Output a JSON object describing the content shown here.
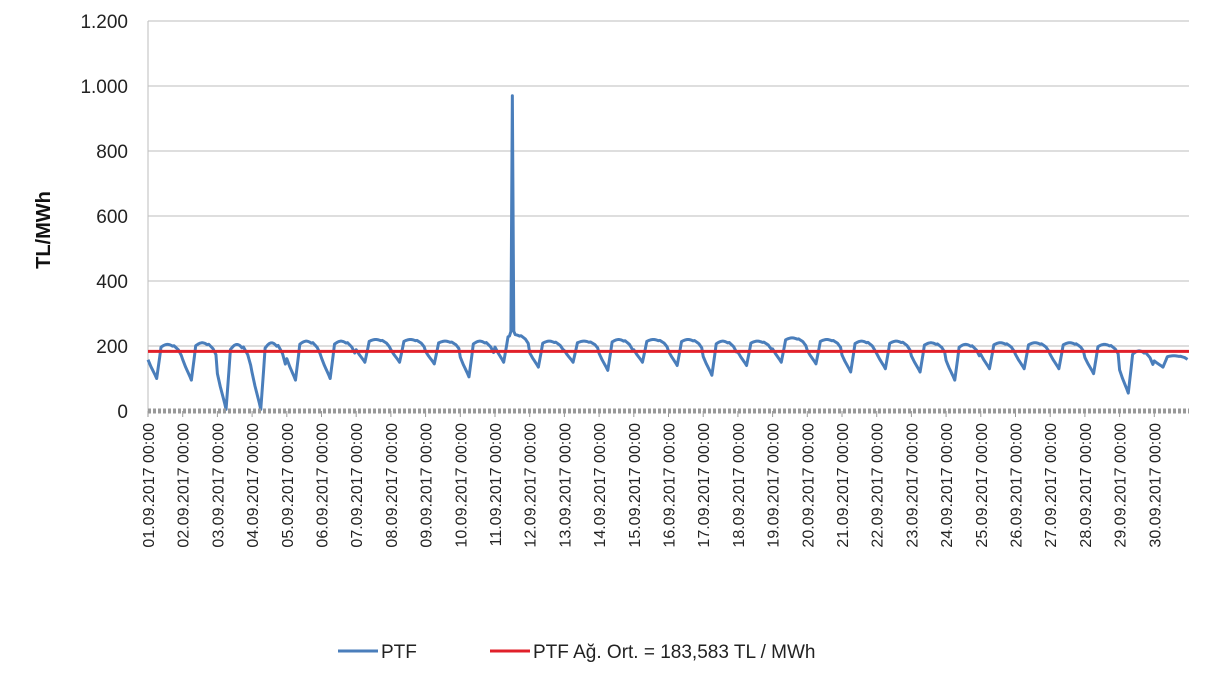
{
  "chart_data": {
    "type": "line",
    "ylabel": "TL/MWh",
    "xlabel": "",
    "ylim": [
      0,
      1200
    ],
    "yticks": [
      {
        "value": 0,
        "label": "0"
      },
      {
        "value": 200,
        "label": "200"
      },
      {
        "value": 400,
        "label": "400"
      },
      {
        "value": 600,
        "label": "600"
      },
      {
        "value": 800,
        "label": "800"
      },
      {
        "value": 1000,
        "label": "1.000"
      },
      {
        "value": 1200,
        "label": "1.200"
      }
    ],
    "xlim": [
      0,
      720
    ],
    "x_unit": "hours since 01.09.2017 00:00",
    "xticks": [
      "01.09.2017 00:00",
      "02.09.2017 00:00",
      "03.09.2017 00:00",
      "04.09.2017 00:00",
      "05.09.2017 00:00",
      "06.09.2017 00:00",
      "07.09.2017 00:00",
      "08.09.2017 00:00",
      "09.09.2017 00:00",
      "10.09.2017 00:00",
      "11.09.2017 00:00",
      "12.09.2017 00:00",
      "13.09.2017 00:00",
      "14.09.2017 00:00",
      "15.09.2017 00:00",
      "16.09.2017 00:00",
      "17.09.2017 00:00",
      "18.09.2017 00:00",
      "19.09.2017 00:00",
      "20.09.2017 00:00",
      "21.09.2017 00:00",
      "22.09.2017 00:00",
      "23.09.2017 00:00",
      "24.09.2017 00:00",
      "25.09.2017 00:00",
      "26.09.2017 00:00",
      "27.09.2017 00:00",
      "28.09.2017 00:00",
      "29.09.2017 00:00",
      "30.09.2017 00:00"
    ],
    "grid": true,
    "legend_position": "bottom",
    "series": [
      {
        "name": "PTF",
        "color": "#4a7ebb",
        "type": "line",
        "daily_min": [
          100,
          95,
          5,
          5,
          95,
          100,
          150,
          150,
          145,
          105,
          150,
          135,
          150,
          125,
          150,
          140,
          110,
          140,
          150,
          145,
          120,
          130,
          120,
          95,
          130,
          130,
          130,
          115,
          55,
          135
        ],
        "daily_peak": [
          205,
          210,
          205,
          210,
          215,
          215,
          220,
          220,
          215,
          215,
          235,
          215,
          215,
          220,
          220,
          220,
          215,
          215,
          225,
          220,
          215,
          215,
          210,
          205,
          210,
          210,
          210,
          205,
          185,
          170
        ],
        "spike": {
          "x": 252,
          "value": 970
        }
      },
      {
        "name": "PTF Ağ. Ort. = 183,583 TL / MWh",
        "color": "#e0202a",
        "type": "constant",
        "value": 183.583
      },
      {
        "name": "",
        "color": "#999999",
        "type": "constant",
        "value": 0,
        "marker": "dot"
      }
    ]
  }
}
